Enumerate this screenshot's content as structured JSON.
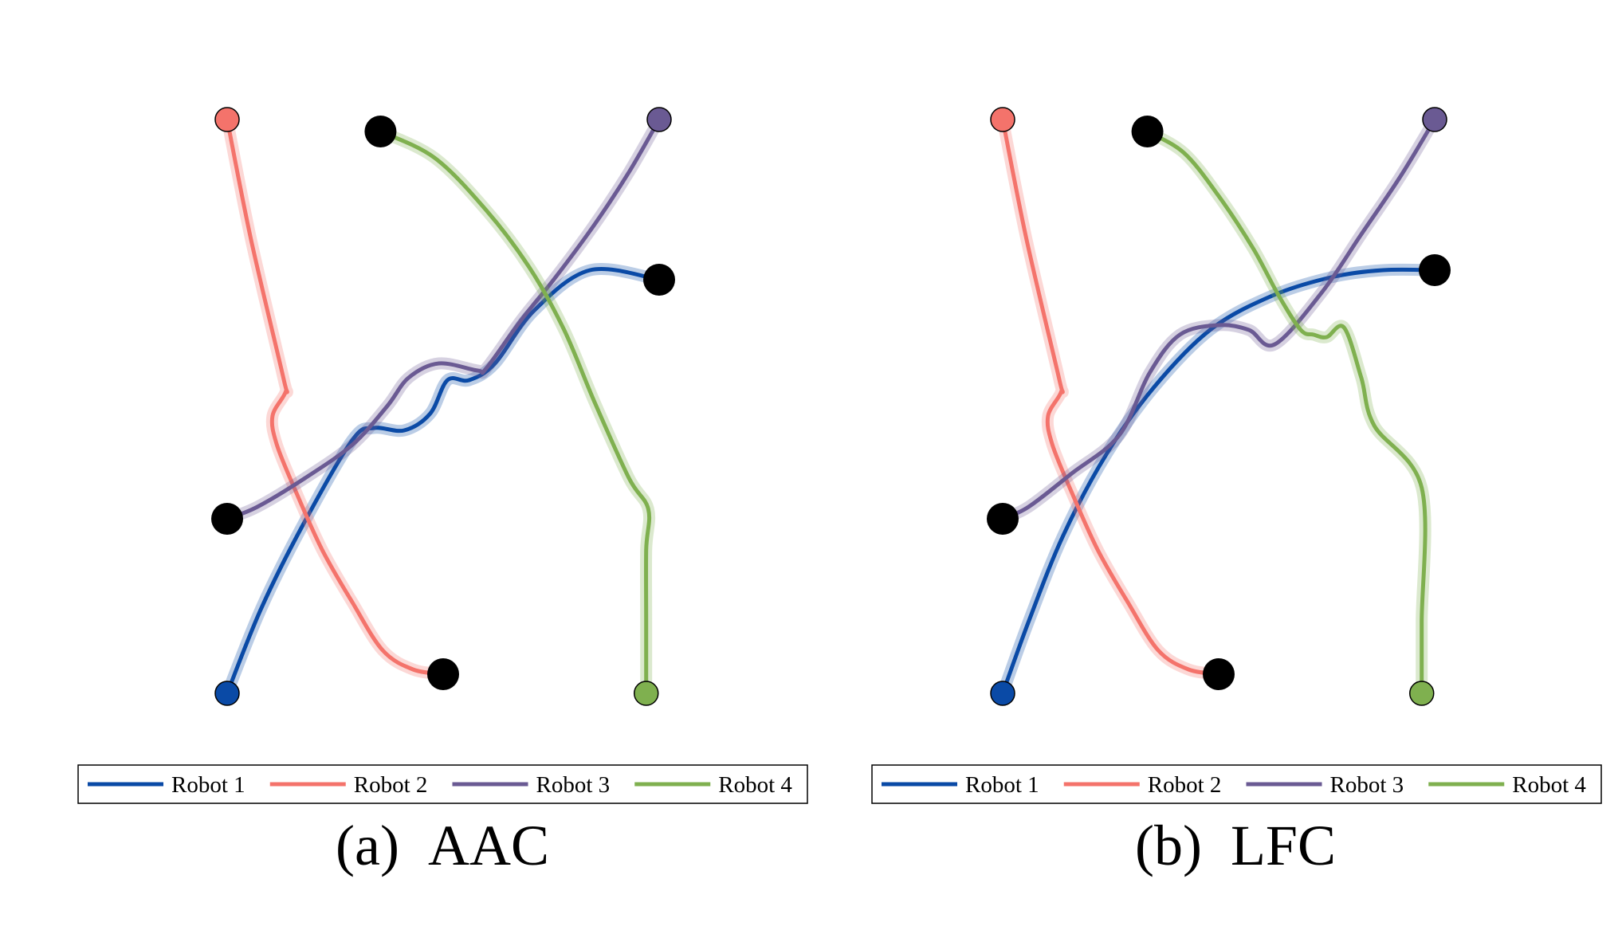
{
  "figure": {
    "panels": [
      {
        "label": "(a)",
        "title": "AAC"
      },
      {
        "label": "(b)",
        "title": "LFC"
      }
    ]
  },
  "colors": {
    "robot1": "#0a4aa6",
    "robot2": "#f4736b",
    "robot3": "#6a5a93",
    "robot4": "#7fb04f",
    "end_marker": "#000000",
    "frame": "#000000"
  },
  "chart_data": [
    {
      "type": "line",
      "label": "(a)",
      "title": "AAC",
      "legend": {
        "position": "bottom",
        "entries": [
          "Robot 1",
          "Robot 2",
          "Robot 3",
          "Robot 4"
        ]
      },
      "xlim": [
        0,
        10
      ],
      "ylim": [
        0,
        12
      ],
      "grid": false,
      "series": [
        {
          "name": "Robot 1",
          "color": "#0a4aa6",
          "x": [
            0,
            0.8,
            1.8,
            2.9,
            3.4,
            4.1,
            4.7,
            5.1,
            5.6,
            6.2,
            7.1,
            8.4,
            10.0
          ],
          "y": [
            0,
            1.8,
            3.6,
            5.3,
            5.55,
            5.5,
            5.85,
            6.55,
            6.55,
            6.9,
            8.0,
            8.85,
            8.65
          ]
        },
        {
          "name": "Robot 2",
          "color": "#f4736b",
          "x": [
            0,
            0.55,
            1.3,
            1.35,
            1.05,
            1.15,
            1.6,
            2.2,
            2.9,
            3.6,
            4.3,
            5.0
          ],
          "y": [
            12,
            9.5,
            6.6,
            6.3,
            5.8,
            5.2,
            4.2,
            3.0,
            1.9,
            0.9,
            0.5,
            0.4
          ]
        },
        {
          "name": "Robot 3",
          "color": "#6a5a93",
          "x": [
            10.0,
            9.3,
            8.5,
            7.6,
            6.8,
            6.0,
            5.8,
            4.9,
            4.2,
            3.7,
            2.9,
            1.8,
            0.7,
            0
          ],
          "y": [
            12.0,
            10.9,
            9.8,
            8.7,
            7.8,
            6.8,
            6.75,
            6.9,
            6.6,
            6.0,
            5.2,
            4.5,
            3.9,
            3.65
          ]
        },
        {
          "name": "Robot 4",
          "color": "#7fb04f",
          "x": [
            3.55,
            4.8,
            6.0,
            7.0,
            7.8,
            8.5,
            9.3,
            9.75,
            9.7,
            9.7,
            9.7
          ],
          "y": [
            11.75,
            11.2,
            10.1,
            8.9,
            7.6,
            6.1,
            4.5,
            3.85,
            3.0,
            1.5,
            0
          ]
        },
        {
          "name": "",
          "type": "scatter",
          "role": "start",
          "x": [
            0,
            0,
            10.0,
            9.7
          ],
          "y": [
            0,
            12.0,
            12.0,
            0
          ]
        },
        {
          "name": "",
          "type": "scatter",
          "role": "end",
          "x": [
            10.0,
            5.0,
            0,
            3.55
          ],
          "y": [
            8.65,
            0.4,
            3.65,
            11.75
          ]
        }
      ]
    },
    {
      "type": "line",
      "label": "(b)",
      "title": "LFC",
      "legend": {
        "position": "bottom",
        "entries": [
          "Robot 1",
          "Robot 2",
          "Robot 3",
          "Robot 4"
        ]
      },
      "xlim": [
        0,
        10
      ],
      "ylim": [
        0,
        12
      ],
      "grid": false,
      "series": [
        {
          "name": "Robot 1",
          "color": "#0a4aa6",
          "x": [
            0,
            0.6,
            1.4,
            2.4,
            3.5,
            4.8,
            6.2,
            7.6,
            8.8,
            10.0
          ],
          "y": [
            0,
            1.5,
            3.3,
            5.0,
            6.4,
            7.6,
            8.3,
            8.7,
            8.85,
            8.85
          ]
        },
        {
          "name": "Robot 2",
          "color": "#f4736b",
          "x": [
            0,
            0.55,
            1.3,
            1.35,
            1.05,
            1.15,
            1.6,
            2.2,
            2.9,
            3.6,
            4.3,
            5.0
          ],
          "y": [
            12,
            9.5,
            6.6,
            6.3,
            5.8,
            5.2,
            4.2,
            3.0,
            1.9,
            0.9,
            0.5,
            0.4
          ]
        },
        {
          "name": "Robot 3",
          "color": "#6a5a93",
          "x": [
            10.0,
            9.2,
            8.3,
            7.4,
            6.3,
            5.7,
            5.0,
            4.1,
            3.4,
            2.7,
            1.6,
            0.6,
            0
          ],
          "y": [
            12.0,
            10.8,
            9.6,
            8.4,
            7.3,
            7.6,
            7.7,
            7.5,
            6.7,
            5.4,
            4.6,
            3.9,
            3.65
          ]
        },
        {
          "name": "Robot 4",
          "color": "#7fb04f",
          "x": [
            3.35,
            4.2,
            5.0,
            5.8,
            6.4,
            6.9,
            7.2,
            7.5,
            7.9,
            8.3,
            8.6,
            9.7,
            9.7,
            9.7
          ],
          "y": [
            11.75,
            11.3,
            10.4,
            9.3,
            8.3,
            7.6,
            7.5,
            7.45,
            7.65,
            6.6,
            5.6,
            4.3,
            1.5,
            0
          ]
        },
        {
          "name": "",
          "type": "scatter",
          "role": "start",
          "x": [
            0,
            0,
            10.0,
            9.7
          ],
          "y": [
            0,
            12.0,
            12.0,
            0
          ]
        },
        {
          "name": "",
          "type": "scatter",
          "role": "end",
          "x": [
            10.0,
            5.0,
            0,
            3.35
          ],
          "y": [
            8.85,
            0.4,
            3.65,
            11.75
          ]
        }
      ]
    }
  ]
}
